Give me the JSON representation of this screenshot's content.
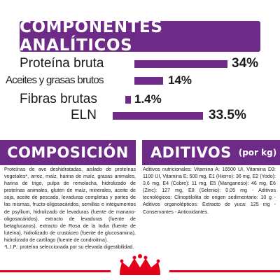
{
  "header": {
    "title": "COMPONENTES ANALÍTICOS"
  },
  "analytics": [
    {
      "label": "Proteína bruta",
      "value": "34%",
      "bar_fraction": 0.34
    },
    {
      "label": "Aceites y grasas brutos",
      "value": "14%",
      "bar_fraction": 0.14
    },
    {
      "label": "Fibras brutas",
      "value": "1.4%",
      "bar_fraction": 0.014
    },
    {
      "label": "ELN",
      "value": "33.5%",
      "bar_fraction": 0.335
    }
  ],
  "composition": {
    "title": "COMPOSICIÓN",
    "text": "Proteínas de ave deshidratadas, aislado de proteínas vegetales*, arroz, maíz, harina de maíz, grasas animales, harina de trigo, pulpa de remolacha, hidrolizado de proteínas animales, gluten de maíz, minerales, aceite de soja, aceite de pescado, levaduras completas y partes de las mismas, fructo-oligosacáridos, semillas e integumentos de psyllium, hidrolizado de levaduras (fuente de manano-oligosacáridos), extracto de levaduras (fuente de betaglucanos), extracto de Rosa de la India (fuente de luteína), hidrolizado de crustáceo (fuente de glucosamina), hidrolizado de cartílago (fuente de condroitina).",
    "footnote": "*L.I.P.: proteína seleccionada por su elevada digestibilidad."
  },
  "additives": {
    "title": "ADITIVOS",
    "subtitle": "(por kg)",
    "text": "Aditivos nutricionales: Vitamina A: 16500 UI, Vitamina D3: 1100 UI, Vitamina E: 500 mg, E1 (Hierro): 36 mg, E2 (Yodo): 3,6 mg, E4 (Cobre): 11 mg, E5 (Manganeso): 46 mg, E6 (Zinc): 127 mg, E8 (Selenio): 0,05 mg - Aditivos tecnológicos: Clinoptilolita de origen sedimentario: 10 g - Aditivos organolépticos: Extracto de yuca: 125 mg - Conservantes - Antioxidantes."
  },
  "colors": {
    "accent": "#6d2a86",
    "brand_red": "#e2001a"
  },
  "brand": {
    "icon": "crown-icon"
  }
}
